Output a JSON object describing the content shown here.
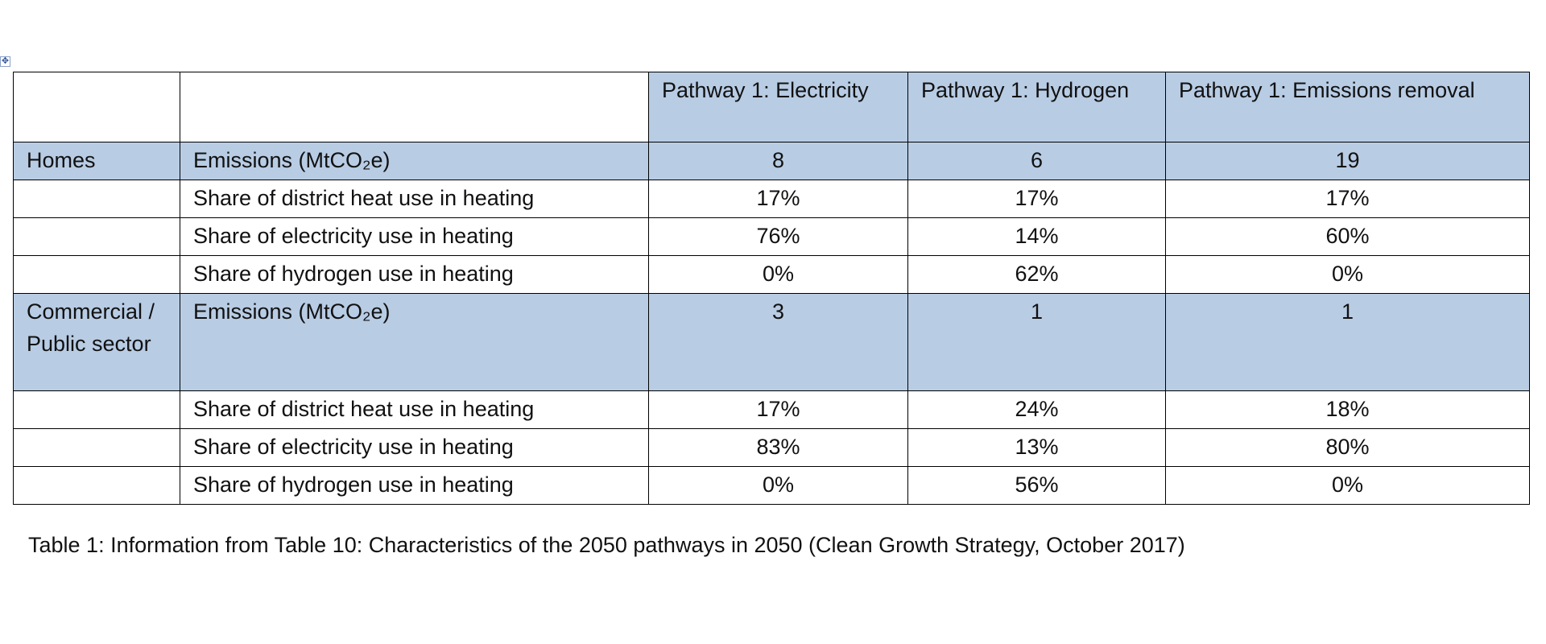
{
  "move_handle_glyph": "✥",
  "table": {
    "columns": [
      "",
      "",
      "Pathway 1: Electricity",
      "Pathway 1: Hydrogen",
      "Pathway 1: Emissions removal"
    ],
    "rows": [
      {
        "sector": "Homes",
        "metric": "Emissions (MtCO₂e)",
        "values": [
          "8",
          "6",
          "19"
        ]
      },
      {
        "sector": "",
        "metric": "Share of district heat use in heating",
        "values": [
          "17%",
          "17%",
          "17%"
        ]
      },
      {
        "sector": "",
        "metric": "Share of electricity use in heating",
        "values": [
          "76%",
          "14%",
          "60%"
        ]
      },
      {
        "sector": "",
        "metric": "Share of hydrogen use in heating",
        "values": [
          "0%",
          "62%",
          "0%"
        ]
      },
      {
        "sector": "Commercial / Public sector",
        "metric": "Emissions (MtCO₂e)",
        "values": [
          "3",
          "1",
          "1"
        ]
      },
      {
        "sector": "",
        "metric": "Share of district heat use in heating",
        "values": [
          "17%",
          "24%",
          "18%"
        ]
      },
      {
        "sector": "",
        "metric": "Share of electricity use in heating",
        "values": [
          "83%",
          "13%",
          "80%"
        ]
      },
      {
        "sector": "",
        "metric": "Share of hydrogen use in heating",
        "values": [
          "0%",
          "56%",
          "0%"
        ]
      }
    ]
  },
  "caption": "Table 1: Information from Table 10: Characteristics of the 2050 pathways in 2050 (Clean Growth Strategy, October 2017)",
  "colors": {
    "highlight_fill": "#b8cce4",
    "border": "#000000"
  }
}
